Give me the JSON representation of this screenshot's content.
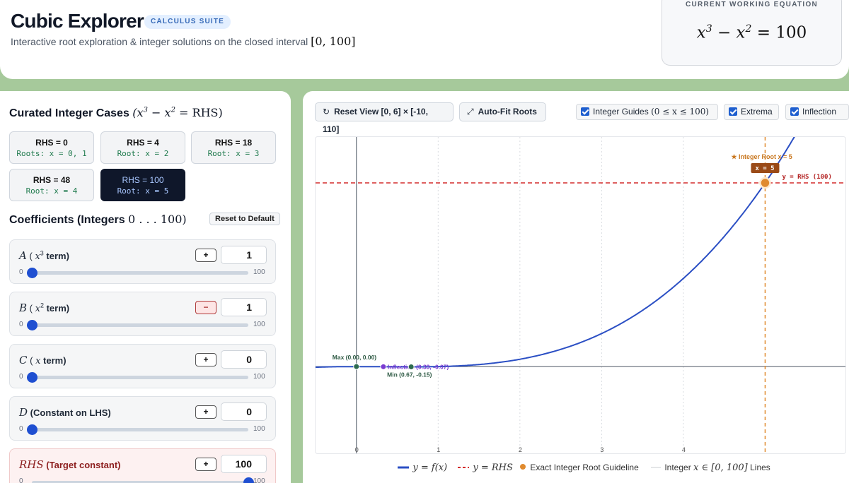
{
  "header": {
    "title": "Cubic Explorer",
    "badge": "CALCULUS SUITE",
    "subtitle_text": "Interactive root exploration & integer solutions on the closed interval",
    "subtitle_interval": "[0, 100]",
    "equation_label": "CURRENT WORKING EQUATION",
    "equation": {
      "lhs1": "x",
      "exp1": "3",
      "op": " − ",
      "lhs2": "x",
      "exp2": "2",
      "rhs": " = 100"
    }
  },
  "cases": {
    "heading": "Curated Integer Cases",
    "heading_formula": {
      "a": "x",
      "ea": "3",
      "op": " − ",
      "b": "x",
      "eb": "2",
      "rhs": " = RHS)"
    },
    "items": [
      {
        "top": "RHS = 0",
        "bottom": "Roots: x = 0, 1",
        "active": false
      },
      {
        "top": "RHS = 4",
        "bottom": "Root: x = 2",
        "active": false
      },
      {
        "top": "RHS = 18",
        "bottom": "Root: x = 3",
        "active": false
      },
      {
        "top": "RHS = 48",
        "bottom": "Root: x = 4",
        "active": false
      },
      {
        "top": "RHS = 100",
        "bottom": "Root: x = 5",
        "active": true
      }
    ]
  },
  "coefficients": {
    "heading": "Coefficients (Integers",
    "heading_range": "0 . . . 100)",
    "reset_label": "Reset to Default",
    "range_min": "0",
    "range_max": "100",
    "items": [
      {
        "var": "A",
        "label_open": "(",
        "term_var": "x",
        "term_exp": "3",
        "term_suffix": " term)",
        "sign": "+",
        "value": "1",
        "fraction": 0.0
      },
      {
        "var": "B",
        "label_open": "(",
        "term_var": "x",
        "term_exp": "2",
        "term_suffix": " term)",
        "sign": "−",
        "value": "1",
        "fraction": 0.0
      },
      {
        "var": "C",
        "label_open": "(",
        "term_var": "x",
        "term_exp": "",
        "term_suffix": " term)",
        "sign": "+",
        "value": "0",
        "fraction": 0.0
      },
      {
        "var": "D",
        "label_open": "",
        "term_var": "",
        "term_exp": "",
        "term_suffix": "(Constant on LHS)",
        "sign": "+",
        "value": "0",
        "fraction": 0.0
      },
      {
        "var": "RHS",
        "label_open": "",
        "term_var": "",
        "term_exp": "",
        "term_suffix": "(Target constant)",
        "sign": "+",
        "value": "100",
        "fraction": 1.0
      }
    ]
  },
  "toolbar": {
    "reset_view": "Reset View [0, 6] × [-10, 110]",
    "auto_fit": "Auto-Fit Roots",
    "toggles": {
      "integer_guides": "Integer Guides",
      "integer_guides_math": "(0 ≤ x ≤ 100)",
      "extrema": "Extrema",
      "inflection": "Inflection"
    }
  },
  "chart_data": {
    "type": "line",
    "xlim": [
      0,
      6
    ],
    "ylim": [
      -10,
      110
    ],
    "x_ticks": [
      "0",
      "1",
      "2",
      "3",
      "4"
    ],
    "rhs": 100,
    "rhs_label": "y = RHS (100)",
    "integer_root": {
      "x": 5,
      "y": 100,
      "label": "★ Integer Root x = 5",
      "tag": "x = 5"
    },
    "maximum": {
      "x": 0.0,
      "y": 0.0,
      "label": "Max (0.00, 0.00)"
    },
    "minimum": {
      "x": 0.67,
      "y": -0.15,
      "label": "Min (0.67, -0.15)"
    },
    "inflection": {
      "x": 0.33,
      "y": -0.07,
      "label": "Inflection (0.33, -0.07)"
    },
    "series": [
      {
        "name": "y = f(x)",
        "function": "x^3 - x^2",
        "color": "#2b4fc4"
      }
    ],
    "colors": {
      "curve": "#2b4fc4",
      "rhs": "#d42b2b",
      "root": "#e08a2e",
      "max": "#2e6b4f",
      "min": "#2e6b4f",
      "inflection": "#7a3bd1"
    }
  },
  "legend": {
    "curve": "y = f(x)",
    "rhs": "y = RHS",
    "root": "Exact Integer Root Guideline",
    "guides_text": "Integer",
    "guides_math": "x ∈ [0, 100]",
    "guides_suffix": "Lines"
  }
}
